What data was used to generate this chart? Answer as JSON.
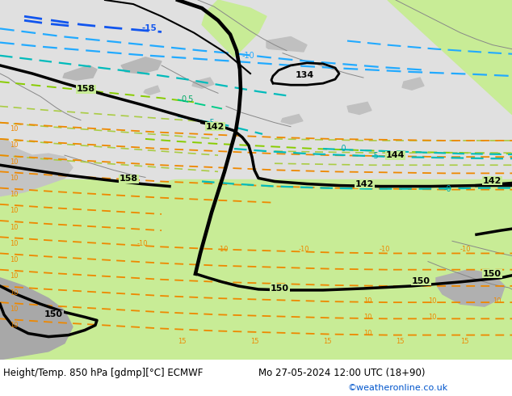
{
  "title_left": "Height/Temp. 850 hPa [gdmp][°C] ECMWF",
  "title_right": "Mo 27-05-2024 12:00 UTC (18+90)",
  "credit": "©weatheronline.co.uk",
  "bg_color": "#e8e8e8",
  "fig_width": 6.34,
  "fig_height": 4.9,
  "dpi": 100,
  "credit_color": "#0055cc",
  "map_bg": "#e0e0e0",
  "land_green": "#c8ec96",
  "land_green2": "#b8e080",
  "sea_gray": "#c8c8c8",
  "sea_gray2": "#b8b8b8",
  "dark_gray": "#909090",
  "white_water": "#d8d8d8"
}
